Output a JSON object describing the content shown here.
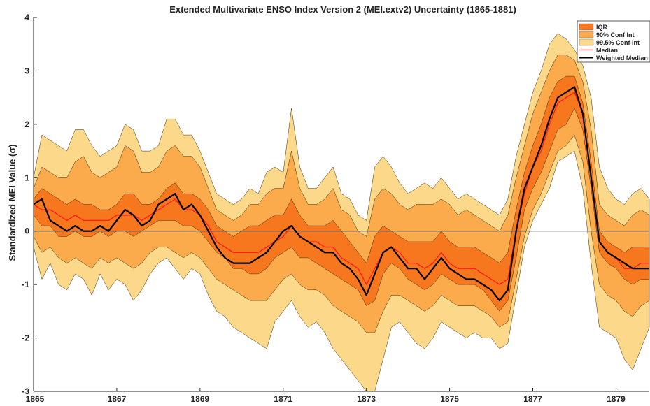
{
  "chart_data": {
    "type": "area",
    "title": "Extended Multivariate ENSO Index Version 2 (MEI.extv2) Uncertainty (1865-1881)",
    "xlabel": "",
    "ylabel": "Standardized MEI Value (σ)",
    "xlim": [
      1865,
      1879.8
    ],
    "ylim": [
      -3,
      4
    ],
    "xticks": [
      1865,
      1867,
      1869,
      1871,
      1873,
      1875,
      1877,
      1879
    ],
    "yticks": [
      -3,
      -2,
      -1,
      0,
      1,
      2,
      3,
      4
    ],
    "grid": false,
    "zero_line": true,
    "legend_position": "top-right",
    "x": [
      1865.0,
      1865.2,
      1865.4,
      1865.6,
      1865.8,
      1866.0,
      1866.2,
      1866.4,
      1866.6,
      1866.8,
      1867.0,
      1867.2,
      1867.4,
      1867.6,
      1867.8,
      1868.0,
      1868.2,
      1868.4,
      1868.6,
      1868.8,
      1869.0,
      1869.2,
      1869.4,
      1869.6,
      1869.8,
      1870.0,
      1870.2,
      1870.4,
      1870.6,
      1870.8,
      1871.0,
      1871.2,
      1871.4,
      1871.6,
      1871.8,
      1872.0,
      1872.2,
      1872.4,
      1872.6,
      1872.8,
      1873.0,
      1873.2,
      1873.4,
      1873.6,
      1873.8,
      1874.0,
      1874.2,
      1874.4,
      1874.6,
      1874.8,
      1875.0,
      1875.2,
      1875.4,
      1875.6,
      1875.8,
      1876.0,
      1876.2,
      1876.4,
      1876.6,
      1876.8,
      1877.0,
      1877.2,
      1877.4,
      1877.6,
      1877.8,
      1878.0,
      1878.2,
      1878.4,
      1878.6,
      1878.8,
      1879.0,
      1879.2,
      1879.4,
      1879.6,
      1879.8
    ],
    "series": [
      {
        "name": "99.5% Conf Int",
        "color": "#fcd98a",
        "lower": [
          -0.3,
          -0.9,
          -0.6,
          -1.0,
          -1.1,
          -0.8,
          -0.9,
          -1.2,
          -0.8,
          -1.1,
          -0.9,
          -1.0,
          -1.3,
          -1.1,
          -0.8,
          -0.6,
          -0.5,
          -0.7,
          -0.9,
          -0.7,
          -0.8,
          -1.2,
          -1.5,
          -1.6,
          -1.8,
          -1.9,
          -2.0,
          -2.1,
          -2.2,
          -1.7,
          -1.5,
          -1.3,
          -1.6,
          -1.8,
          -1.7,
          -1.9,
          -2.2,
          -2.4,
          -2.6,
          -2.8,
          -3.0,
          -3.0,
          -2.4,
          -1.8,
          -1.7,
          -1.9,
          -2.1,
          -2.2,
          -2.0,
          -1.7,
          -1.8,
          -1.9,
          -2.0,
          -1.9,
          -2.0,
          -2.0,
          -2.2,
          -2.1,
          -1.2,
          -0.3,
          0.2,
          0.5,
          0.8,
          1.3,
          1.4,
          1.5,
          0.8,
          -0.6,
          -1.8,
          -1.9,
          -2.0,
          -2.4,
          -2.6,
          -2.2,
          -1.8
        ],
        "upper": [
          1.0,
          1.8,
          1.7,
          1.6,
          1.5,
          1.9,
          1.9,
          1.6,
          1.4,
          1.5,
          1.6,
          2.0,
          1.9,
          1.5,
          1.5,
          1.6,
          2.1,
          2.1,
          1.8,
          1.8,
          1.5,
          1.1,
          0.7,
          0.6,
          0.5,
          0.6,
          0.8,
          0.7,
          1.1,
          1.2,
          1.1,
          2.3,
          1.2,
          0.8,
          0.8,
          1.0,
          1.2,
          0.7,
          0.6,
          0.3,
          0.2,
          1.2,
          1.4,
          1.2,
          0.9,
          0.7,
          0.8,
          0.9,
          0.8,
          1.0,
          0.8,
          0.6,
          0.7,
          0.6,
          0.5,
          0.4,
          0.3,
          0.6,
          1.4,
          2.0,
          2.6,
          3.0,
          3.5,
          3.7,
          3.6,
          3.4,
          3.1,
          2.5,
          1.2,
          0.8,
          0.6,
          0.5,
          0.7,
          0.8,
          0.6
        ]
      },
      {
        "name": "90% Conf Int",
        "color": "#fbab4c",
        "lower": [
          -0.1,
          -0.4,
          -0.3,
          -0.5,
          -0.6,
          -0.5,
          -0.6,
          -0.7,
          -0.5,
          -0.6,
          -0.5,
          -0.6,
          -0.7,
          -0.6,
          -0.4,
          -0.3,
          -0.3,
          -0.4,
          -0.5,
          -0.4,
          -0.5,
          -0.7,
          -0.9,
          -1.0,
          -1.1,
          -1.2,
          -1.3,
          -1.3,
          -1.3,
          -1.1,
          -0.9,
          -0.8,
          -1.0,
          -1.1,
          -1.1,
          -1.2,
          -1.4,
          -1.5,
          -1.6,
          -1.7,
          -1.9,
          -1.9,
          -1.5,
          -1.2,
          -1.2,
          -1.3,
          -1.4,
          -1.5,
          -1.4,
          -1.2,
          -1.3,
          -1.4,
          -1.4,
          -1.4,
          -1.5,
          -1.6,
          -1.8,
          -1.7,
          -0.9,
          -0.1,
          0.4,
          0.7,
          1.1,
          1.5,
          1.6,
          1.8,
          1.3,
          0.0,
          -1.0,
          -1.2,
          -1.3,
          -1.5,
          -1.6,
          -1.4,
          -1.3
        ],
        "upper": [
          0.8,
          1.2,
          1.1,
          1.0,
          1.0,
          1.3,
          1.4,
          1.1,
          1.0,
          1.1,
          1.2,
          1.6,
          1.5,
          1.1,
          1.1,
          1.2,
          1.5,
          1.6,
          1.4,
          1.4,
          1.2,
          0.8,
          0.4,
          0.3,
          0.2,
          0.3,
          0.5,
          0.5,
          0.7,
          0.8,
          0.8,
          1.5,
          0.8,
          0.5,
          0.5,
          0.6,
          0.8,
          0.4,
          0.3,
          0.0,
          -0.1,
          0.6,
          0.8,
          0.7,
          0.5,
          0.4,
          0.5,
          0.5,
          0.5,
          0.6,
          0.5,
          0.3,
          0.4,
          0.3,
          0.2,
          0.1,
          0.0,
          0.3,
          1.0,
          1.6,
          2.2,
          2.6,
          3.0,
          3.3,
          3.3,
          3.2,
          2.8,
          1.9,
          0.5,
          0.3,
          0.2,
          0.1,
          0.3,
          0.4,
          0.3
        ]
      },
      {
        "name": "IQR",
        "color": "#f7771f",
        "lower": [
          0.3,
          0.1,
          0.1,
          -0.1,
          -0.1,
          0.0,
          -0.1,
          -0.1,
          0.0,
          -0.1,
          0.0,
          0.0,
          -0.1,
          0.0,
          0.1,
          0.2,
          0.2,
          0.2,
          0.1,
          0.1,
          0.0,
          -0.2,
          -0.4,
          -0.5,
          -0.7,
          -0.7,
          -0.8,
          -0.8,
          -0.7,
          -0.5,
          -0.4,
          -0.3,
          -0.5,
          -0.5,
          -0.6,
          -0.7,
          -0.8,
          -0.9,
          -1.0,
          -1.1,
          -1.4,
          -1.3,
          -0.8,
          -0.6,
          -0.7,
          -0.9,
          -1.0,
          -1.1,
          -1.0,
          -0.8,
          -0.9,
          -1.0,
          -1.0,
          -1.0,
          -1.1,
          -1.3,
          -1.5,
          -1.3,
          -0.5,
          0.4,
          0.8,
          1.1,
          1.5,
          1.9,
          2.0,
          2.3,
          1.9,
          0.8,
          -0.4,
          -0.6,
          -0.7,
          -0.9,
          -1.0,
          -0.9,
          -0.9
        ],
        "upper": [
          0.6,
          0.8,
          0.7,
          0.6,
          0.5,
          0.6,
          0.5,
          0.5,
          0.4,
          0.4,
          0.5,
          0.7,
          0.7,
          0.5,
          0.5,
          0.6,
          0.8,
          0.9,
          0.7,
          0.7,
          0.6,
          0.4,
          0.1,
          0.0,
          -0.1,
          0.0,
          0.1,
          0.1,
          0.2,
          0.3,
          0.3,
          0.6,
          0.3,
          0.1,
          0.1,
          0.1,
          0.2,
          0.0,
          -0.2,
          -0.4,
          -0.6,
          -0.1,
          0.1,
          0.0,
          -0.1,
          -0.2,
          -0.2,
          -0.2,
          -0.2,
          0.0,
          -0.2,
          -0.3,
          -0.3,
          -0.3,
          -0.4,
          -0.5,
          -0.6,
          -0.4,
          0.4,
          1.1,
          1.6,
          2.0,
          2.5,
          2.8,
          2.9,
          2.9,
          2.4,
          1.3,
          0.0,
          -0.2,
          -0.3,
          -0.4,
          -0.3,
          -0.3,
          -0.3
        ]
      },
      {
        "name": "Median",
        "color": "#ff1a1a",
        "values": [
          0.5,
          0.4,
          0.4,
          0.3,
          0.2,
          0.3,
          0.2,
          0.2,
          0.2,
          0.2,
          0.3,
          0.3,
          0.3,
          0.2,
          0.3,
          0.4,
          0.5,
          0.6,
          0.4,
          0.4,
          0.3,
          0.1,
          -0.2,
          -0.3,
          -0.4,
          -0.4,
          -0.4,
          -0.4,
          -0.3,
          -0.2,
          -0.1,
          0.1,
          -0.1,
          -0.2,
          -0.2,
          -0.3,
          -0.3,
          -0.5,
          -0.6,
          -0.7,
          -1.0,
          -0.7,
          -0.4,
          -0.3,
          -0.4,
          -0.6,
          -0.6,
          -0.7,
          -0.6,
          -0.4,
          -0.6,
          -0.7,
          -0.7,
          -0.7,
          -0.8,
          -0.9,
          -1.0,
          -0.9,
          0.0,
          0.7,
          1.2,
          1.5,
          2.0,
          2.4,
          2.5,
          2.6,
          2.2,
          1.0,
          -0.2,
          -0.4,
          -0.5,
          -0.7,
          -0.7,
          -0.6,
          -0.6
        ]
      },
      {
        "name": "Weighted Median",
        "color": "#000000",
        "values": [
          0.5,
          0.6,
          0.2,
          0.1,
          0.0,
          0.1,
          0.0,
          0.0,
          0.1,
          0.0,
          0.2,
          0.4,
          0.3,
          0.1,
          0.2,
          0.5,
          0.6,
          0.7,
          0.4,
          0.5,
          0.3,
          0.0,
          -0.3,
          -0.5,
          -0.6,
          -0.6,
          -0.6,
          -0.5,
          -0.4,
          -0.2,
          0.0,
          0.1,
          -0.1,
          -0.2,
          -0.3,
          -0.4,
          -0.4,
          -0.6,
          -0.7,
          -0.9,
          -1.2,
          -0.8,
          -0.4,
          -0.3,
          -0.5,
          -0.7,
          -0.7,
          -0.9,
          -0.7,
          -0.5,
          -0.7,
          -0.8,
          -0.9,
          -0.9,
          -1.0,
          -1.1,
          -1.3,
          -1.1,
          0.0,
          0.8,
          1.2,
          1.6,
          2.1,
          2.5,
          2.6,
          2.7,
          2.2,
          1.0,
          -0.2,
          -0.4,
          -0.5,
          -0.6,
          -0.7,
          -0.7,
          -0.7
        ]
      }
    ]
  },
  "legend": {
    "items": [
      {
        "label": "IQR",
        "color": "#f7771f",
        "style": "patch"
      },
      {
        "label": "90% Conf Int",
        "color": "#fbab4c",
        "style": "patch"
      },
      {
        "label": "99.5% Conf Int",
        "color": "#fcd98a",
        "style": "patch"
      },
      {
        "label": "Median",
        "color": "#ff1a1a",
        "style": "line"
      },
      {
        "label": "Weighted Median",
        "color": "#000000",
        "style": "line"
      }
    ]
  }
}
